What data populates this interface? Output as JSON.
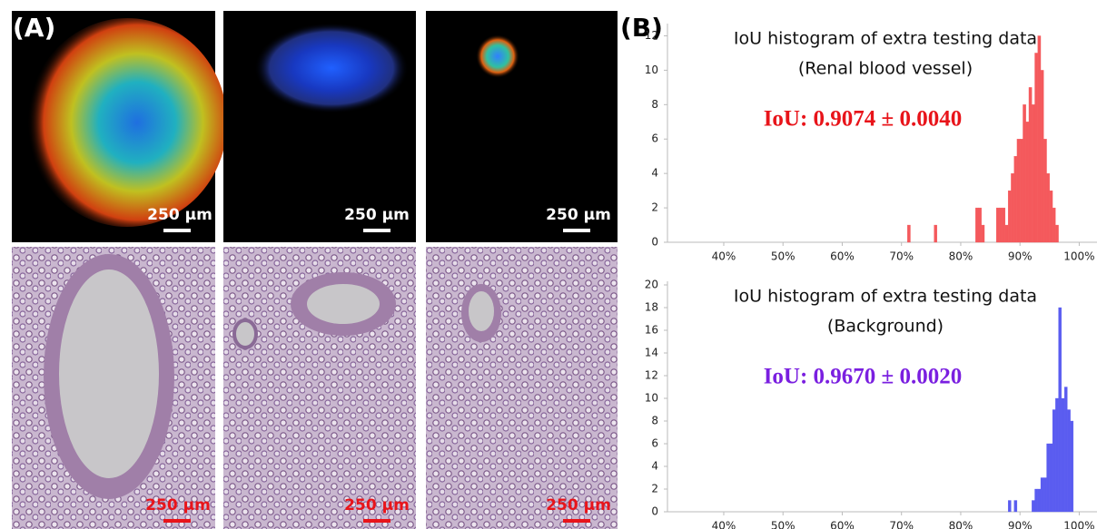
{
  "panels": {
    "a_label": "(A)",
    "b_label": "(B)",
    "scale_bars": [
      "250 µm",
      "250 µm",
      "250 µm",
      "250 µm",
      "250 µm",
      "250 µm"
    ]
  },
  "chart_data": [
    {
      "type": "histogram",
      "title": "IoU histogram of extra testing data",
      "subtitle": "(Renal blood vessel)",
      "annotation": "IoU: 0.9074 ± 0.0040",
      "annotation_color": "#e8141a",
      "color": "#f4595c",
      "bins": [
        70,
        70.5,
        71,
        71.5,
        72,
        72.5,
        73,
        73.5,
        74,
        74.5,
        75,
        75.5,
        76,
        76.5,
        77,
        77.5,
        78,
        78.5,
        79,
        79.5,
        80,
        80.5,
        81,
        81.5,
        82,
        82.5,
        83,
        83.5,
        84,
        84.5,
        85,
        85.5,
        86,
        86.5,
        87,
        87.5,
        88,
        88.5,
        89,
        89.5,
        90,
        90.5,
        91,
        91.5,
        92,
        92.5,
        93,
        93.5,
        94,
        94.5,
        95,
        95.5,
        96,
        96.5
      ],
      "values": [
        0,
        0,
        1,
        0,
        0,
        0,
        0,
        0,
        0,
        0,
        0,
        1,
        0,
        0,
        0,
        0,
        0,
        0,
        0,
        0,
        0,
        0,
        0,
        0,
        0,
        2,
        2,
        1,
        0,
        0,
        0,
        0,
        2,
        2,
        2,
        1,
        3,
        4,
        5,
        6,
        6,
        8,
        7,
        9,
        8,
        11,
        12,
        10,
        6,
        4,
        3,
        2,
        1
      ],
      "xlim": [
        30.5,
        103
      ],
      "xticks": [
        {
          "value": 40,
          "label": "40%"
        },
        {
          "value": 50,
          "label": "50%"
        },
        {
          "value": 60,
          "label": "60%"
        },
        {
          "value": 70,
          "label": "70%"
        },
        {
          "value": 80,
          "label": "80%"
        },
        {
          "value": 90,
          "label": "90%"
        },
        {
          "value": 100,
          "label": "100%"
        }
      ],
      "ylim": [
        0,
        12.5
      ],
      "yticks": [
        0,
        2,
        4,
        6,
        8,
        10,
        12
      ]
    },
    {
      "type": "histogram",
      "title": "IoU histogram of extra testing data",
      "subtitle": "(Background)",
      "annotation": "IoU: 0.9670 ± 0.0020",
      "annotation_color": "#7a1fe0",
      "color": "#5a5cf0",
      "bins": [
        87.5,
        88,
        88.5,
        89,
        89.5,
        90,
        90.5,
        91,
        91.5,
        92,
        92.5,
        93,
        93.5,
        94,
        94.5,
        95,
        95.5,
        96,
        96.5,
        97,
        97.5,
        98,
        98.5,
        99
      ],
      "values": [
        0,
        1,
        0,
        1,
        0,
        0,
        0,
        0,
        0,
        1,
        2,
        2,
        3,
        3,
        6,
        6,
        9,
        10,
        18,
        10,
        11,
        9,
        8
      ],
      "xlim": [
        30.5,
        103
      ],
      "xticks": [
        {
          "value": 40,
          "label": "40%"
        },
        {
          "value": 50,
          "label": "50%"
        },
        {
          "value": 60,
          "label": "60%"
        },
        {
          "value": 70,
          "label": "70%"
        },
        {
          "value": 80,
          "label": "80%"
        },
        {
          "value": 90,
          "label": "90%"
        },
        {
          "value": 100,
          "label": "100%"
        }
      ],
      "ylim": [
        0,
        20
      ],
      "yticks": [
        0,
        2,
        4,
        6,
        8,
        10,
        12,
        14,
        16,
        18,
        20
      ]
    }
  ]
}
